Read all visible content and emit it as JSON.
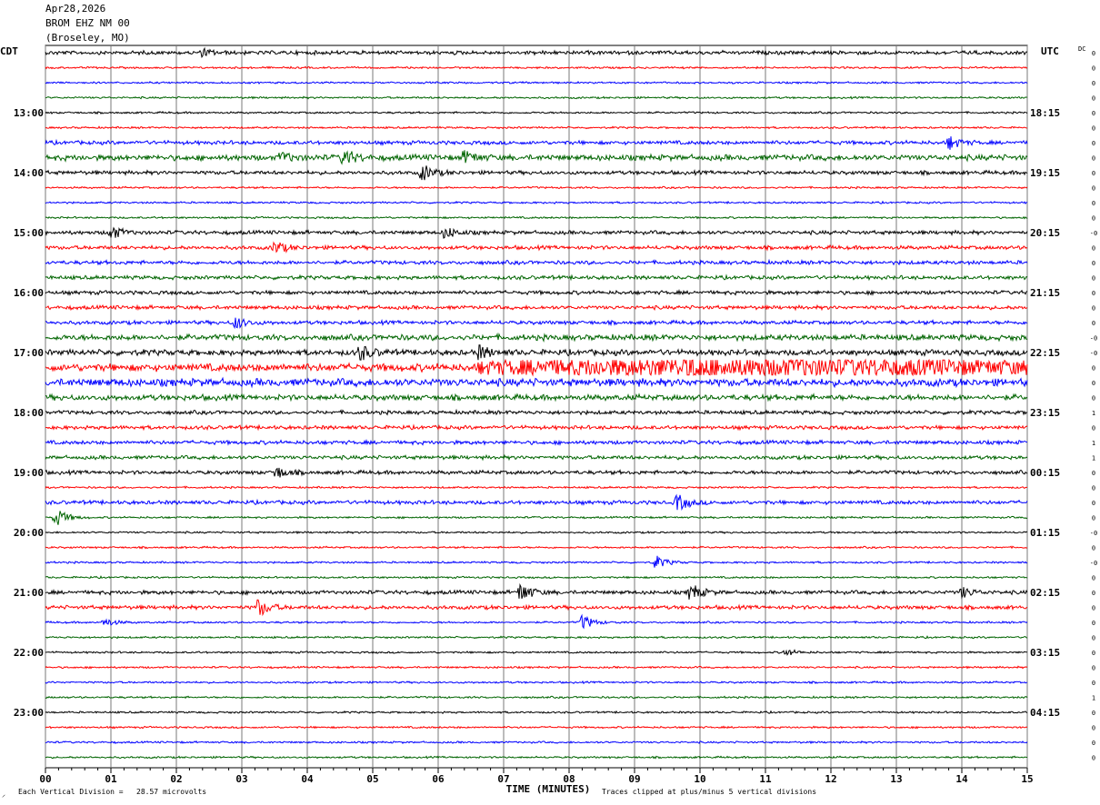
{
  "header": {
    "date": "Apr28,2026",
    "station": "BROM EHZ NM 00",
    "location": "(Broseley, MO)"
  },
  "left_zone": "CDT",
  "right_zone": "UTC",
  "dc_label": "DC",
  "footer": {
    "scale_text": "Each Vertical Division =   28.57 microvolts",
    "clip_text": "Traces clipped at plus/minus 5 vertical divisions",
    "corner_mark": "⸝"
  },
  "colors": [
    "#000000",
    "#ff0000",
    "#0000ff",
    "#006400"
  ],
  "chart_data": {
    "type": "line",
    "xlabel": "TIME (MINUTES)",
    "xlim": [
      0,
      15
    ],
    "x_ticks": [
      "00",
      "01",
      "02",
      "03",
      "04",
      "05",
      "06",
      "07",
      "08",
      "09",
      "10",
      "11",
      "12",
      "13",
      "14",
      "15"
    ],
    "rows_per_hour": 4,
    "row_count": 48,
    "left_hour_labels": [
      "13:00",
      "14:00",
      "15:00",
      "16:00",
      "17:00",
      "18:00",
      "19:00",
      "20:00",
      "21:00",
      "22:00",
      "23:00"
    ],
    "right_hour_labels": [
      "18:15",
      "19:15",
      "20:15",
      "21:15",
      "22:15",
      "23:15",
      "00:15",
      "01:15",
      "02:15",
      "03:15",
      "04:15"
    ],
    "dc_values": [
      "0",
      "0",
      "0",
      "0",
      "0",
      "0",
      "0",
      "0",
      "0",
      "0",
      "0",
      "0",
      "-0",
      "0",
      "0",
      "0",
      "0",
      "0",
      "0",
      "-0",
      "-0",
      "0",
      "0",
      "0",
      "1",
      "0",
      "1",
      "1",
      "0",
      "0",
      "0",
      "0",
      "-0",
      "0",
      "-0",
      "0",
      "0",
      "0",
      "0",
      "0",
      "0",
      "0",
      "0",
      "1",
      "0",
      "0",
      "0",
      "0"
    ],
    "noise_levels": [
      2,
      1,
      1,
      1,
      1,
      1,
      2,
      3,
      2,
      1,
      1,
      1,
      2,
      2,
      2,
      2,
      2,
      2,
      2,
      3,
      3,
      4,
      4,
      3,
      2,
      2,
      2,
      2,
      2,
      1,
      2,
      1,
      1,
      1,
      1,
      1,
      2,
      2,
      1,
      1,
      1,
      1,
      1,
      1,
      1,
      1,
      1,
      1
    ],
    "events": [
      {
        "row": 0,
        "minute": 2.4,
        "amp": 4
      },
      {
        "row": 7,
        "minute": 3.6,
        "amp": 6
      },
      {
        "row": 7,
        "minute": 4.55,
        "amp": 10
      },
      {
        "row": 7,
        "minute": 6.4,
        "amp": 8
      },
      {
        "row": 6,
        "minute": 13.8,
        "amp": 8
      },
      {
        "row": 8,
        "minute": 5.75,
        "amp": 10
      },
      {
        "row": 12,
        "minute": 1.0,
        "amp": 8
      },
      {
        "row": 12,
        "minute": 6.1,
        "amp": 7
      },
      {
        "row": 13,
        "minute": 3.5,
        "amp": 8
      },
      {
        "row": 18,
        "minute": 2.9,
        "amp": 7
      },
      {
        "row": 20,
        "minute": 4.8,
        "amp": 9
      },
      {
        "row": 20,
        "minute": 6.6,
        "amp": 9
      },
      {
        "row": 21,
        "minute": 9.8,
        "amp": 12
      },
      {
        "row": 28,
        "minute": 3.5,
        "amp": 8
      },
      {
        "row": 30,
        "minute": 9.65,
        "amp": 10
      },
      {
        "row": 31,
        "minute": 0.15,
        "amp": 12
      },
      {
        "row": 34,
        "minute": 9.3,
        "amp": 9
      },
      {
        "row": 36,
        "minute": 7.25,
        "amp": 12
      },
      {
        "row": 36,
        "minute": 9.85,
        "amp": 10
      },
      {
        "row": 36,
        "minute": 14.0,
        "amp": 6
      },
      {
        "row": 37,
        "minute": 3.25,
        "amp": 11
      },
      {
        "row": 38,
        "minute": 8.2,
        "amp": 9
      },
      {
        "row": 38,
        "minute": 0.9,
        "amp": 5
      },
      {
        "row": 40,
        "minute": 11.3,
        "amp": 4
      }
    ],
    "bursts": [
      {
        "row": 21,
        "start_minute": 6.6,
        "end_minute": 15.0,
        "amp": 8
      }
    ]
  }
}
